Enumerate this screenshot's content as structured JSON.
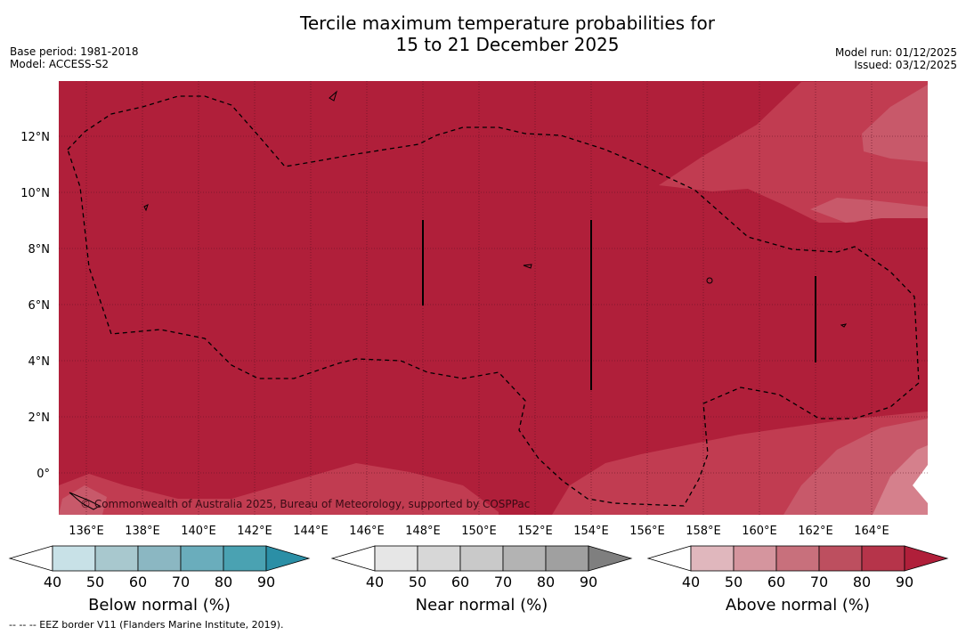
{
  "title_line1": "Tercile maximum temperature probabilities for",
  "title_line2": "15 to 21 December 2025",
  "base_period": "Base period: 1981-2018",
  "model": "Model: ACCESS-S2",
  "model_run": "Model run: 01/12/2025",
  "issued": "Issued: 03/12/2025",
  "copyright": "© Commonwealth of Australia 2025, Bureau of Meteorology, supported by COSPPac",
  "longitude_labels": [
    "136°E",
    "138°E",
    "140°E",
    "142°E",
    "144°E",
    "146°E",
    "148°E",
    "150°E",
    "152°E",
    "154°E",
    "156°E",
    "158°E",
    "160°E",
    "162°E",
    "164°E"
  ],
  "latitude_labels": [
    "12°N",
    "10°N",
    "8°N",
    "6°N",
    "4°N",
    "2°N",
    "0°"
  ],
  "colorbars": [
    {
      "title": "Below normal (%)",
      "ticks": [
        "40",
        "50",
        "60",
        "70",
        "80",
        "90"
      ],
      "colors": [
        "#ffffff",
        "#c8e1e7",
        "#a8c8ce",
        "#8bb7c2",
        "#6aadbc",
        "#4aa2b2",
        "#2b8fa6"
      ]
    },
    {
      "title": "Near normal (%)",
      "ticks": [
        "40",
        "50",
        "60",
        "70",
        "80",
        "90"
      ],
      "colors": [
        "#ffffff",
        "#e6e6e6",
        "#d7d7d7",
        "#c9c9c9",
        "#b3b3b3",
        "#a0a0a0",
        "#7f7f7f"
      ]
    },
    {
      "title": "Above normal (%)",
      "ticks": [
        "40",
        "50",
        "60",
        "70",
        "80",
        "90"
      ],
      "colors": [
        "#ffffff",
        "#e0b7bd",
        "#d5959e",
        "#c8707c",
        "#bd4f5f",
        "#b6344a",
        "#b01f3a"
      ]
    }
  ],
  "footnote": "-- -- -- EEZ border V11 (Flanders Marine Institute, 2019).",
  "colors": {
    "very_high": "#b01f3a",
    "high": "#c13c51",
    "medium": "#c8596a",
    "low": "#d5808c",
    "grid": "#5a1020",
    "border": "#000000"
  }
}
